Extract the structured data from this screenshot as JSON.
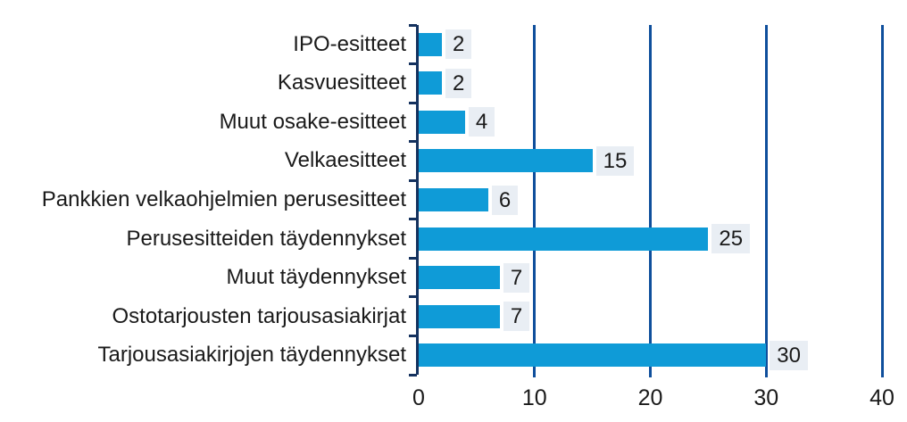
{
  "chart_data": {
    "type": "bar",
    "orientation": "horizontal",
    "categories": [
      "IPO-esitteet",
      "Kasvuesitteet",
      "Muut osake-esitteet",
      "Velkaesitteet",
      "Pankkien velkaohjelmien perusesitteet",
      "Perusesitteiden täydennykset",
      "Muut täydennykset",
      "Ostotarjousten tarjousasiakirjat",
      "Tarjousasiakirjojen täydennykset"
    ],
    "values": [
      2,
      2,
      4,
      15,
      6,
      25,
      7,
      7,
      30
    ],
    "data_labels_shown": true,
    "xlim": [
      0,
      40
    ],
    "x_ticks": [
      0,
      10,
      20,
      30,
      40
    ],
    "grid": "vertical-gridlines-at-major-ticks",
    "legend": "none",
    "colors": {
      "bar": "#0F9BD7",
      "value_label_background": "#E9EEF4",
      "axis_line": "#14315E",
      "gridline": "#0F4F9C",
      "text": "#1a1a1a",
      "background": "#ffffff"
    }
  }
}
